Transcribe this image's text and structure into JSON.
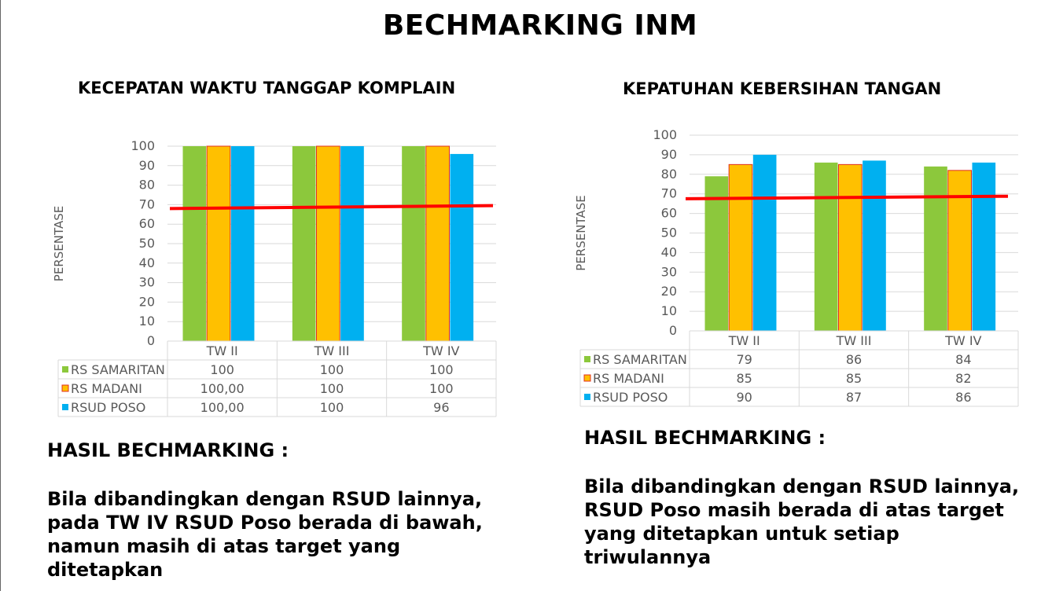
{
  "title": "BECHMARKING INM",
  "colors": {
    "samaritan": "#8CC83C",
    "madani": "#FFC000",
    "madani_border": "#E03020",
    "poso": "#00B0F0",
    "target_line": "#FF0000",
    "grid": "#D9D9D9",
    "axis_text": "#595959"
  },
  "left_panel": {
    "heading": "KECEPATAN WAKTU TANGGAP KOMPLAIN",
    "hasil_label": "HASIL BECHMARKING :",
    "conclusion_lines": [
      "Bila dibandingkan dengan RSUD lainnya,",
      "pada TW IV RSUD Poso berada di bawah,",
      "namun masih di atas target yang",
      "ditetapkan"
    ]
  },
  "right_panel": {
    "heading": "KEPATUHAN KEBERSIHAN TANGAN",
    "hasil_label": "HASIL BECHMARKING :",
    "conclusion_lines": [
      "Bila dibandingkan dengan RSUD lainnya,",
      "RSUD Poso masih berada di atas target",
      "yang ditetapkan untuk setiap",
      "triwulannya"
    ]
  },
  "chart_data": [
    {
      "type": "bar",
      "title": "KECEPATAN WAKTU TANGGAP KOMPLAIN",
      "ylabel": "PERSENTASE",
      "ylim": [
        0,
        100
      ],
      "yticks": [
        0,
        10,
        20,
        30,
        40,
        50,
        60,
        70,
        80,
        90,
        100
      ],
      "categories": [
        "TW II",
        "TW III",
        "TW IV"
      ],
      "series": [
        {
          "name": "RS SAMARITAN",
          "values": [
            100,
            100,
            100
          ],
          "labels": [
            "100",
            "100",
            "100"
          ]
        },
        {
          "name": "RS MADANI",
          "values": [
            100,
            100,
            100
          ],
          "labels": [
            "100,00",
            "100",
            "100"
          ]
        },
        {
          "name": "RSUD POSO",
          "values": [
            100,
            100,
            96
          ],
          "labels": [
            "100,00",
            "100",
            "96"
          ]
        }
      ],
      "target_line": {
        "start": 68,
        "end": 69.5
      },
      "grid": true,
      "legend": "data-table"
    },
    {
      "type": "bar",
      "title": "KEPATUHAN KEBERSIHAN TANGAN",
      "ylabel": "PERSENTASE",
      "ylim": [
        0,
        100
      ],
      "yticks": [
        0,
        10,
        20,
        30,
        40,
        50,
        60,
        70,
        80,
        90,
        100
      ],
      "categories": [
        "TW II",
        "TW III",
        "TW IV"
      ],
      "series": [
        {
          "name": "RS SAMARITAN",
          "values": [
            79,
            86,
            84
          ],
          "labels": [
            "79",
            "86",
            "84"
          ]
        },
        {
          "name": "RS MADANI",
          "values": [
            85,
            85,
            82
          ],
          "labels": [
            "85",
            "85",
            "82"
          ]
        },
        {
          "name": "RSUD POSO",
          "values": [
            90,
            87,
            86
          ],
          "labels": [
            "90",
            "87",
            "86"
          ]
        }
      ],
      "target_line": {
        "start": 67.5,
        "end": 68.8
      },
      "grid": true,
      "legend": "data-table"
    }
  ]
}
